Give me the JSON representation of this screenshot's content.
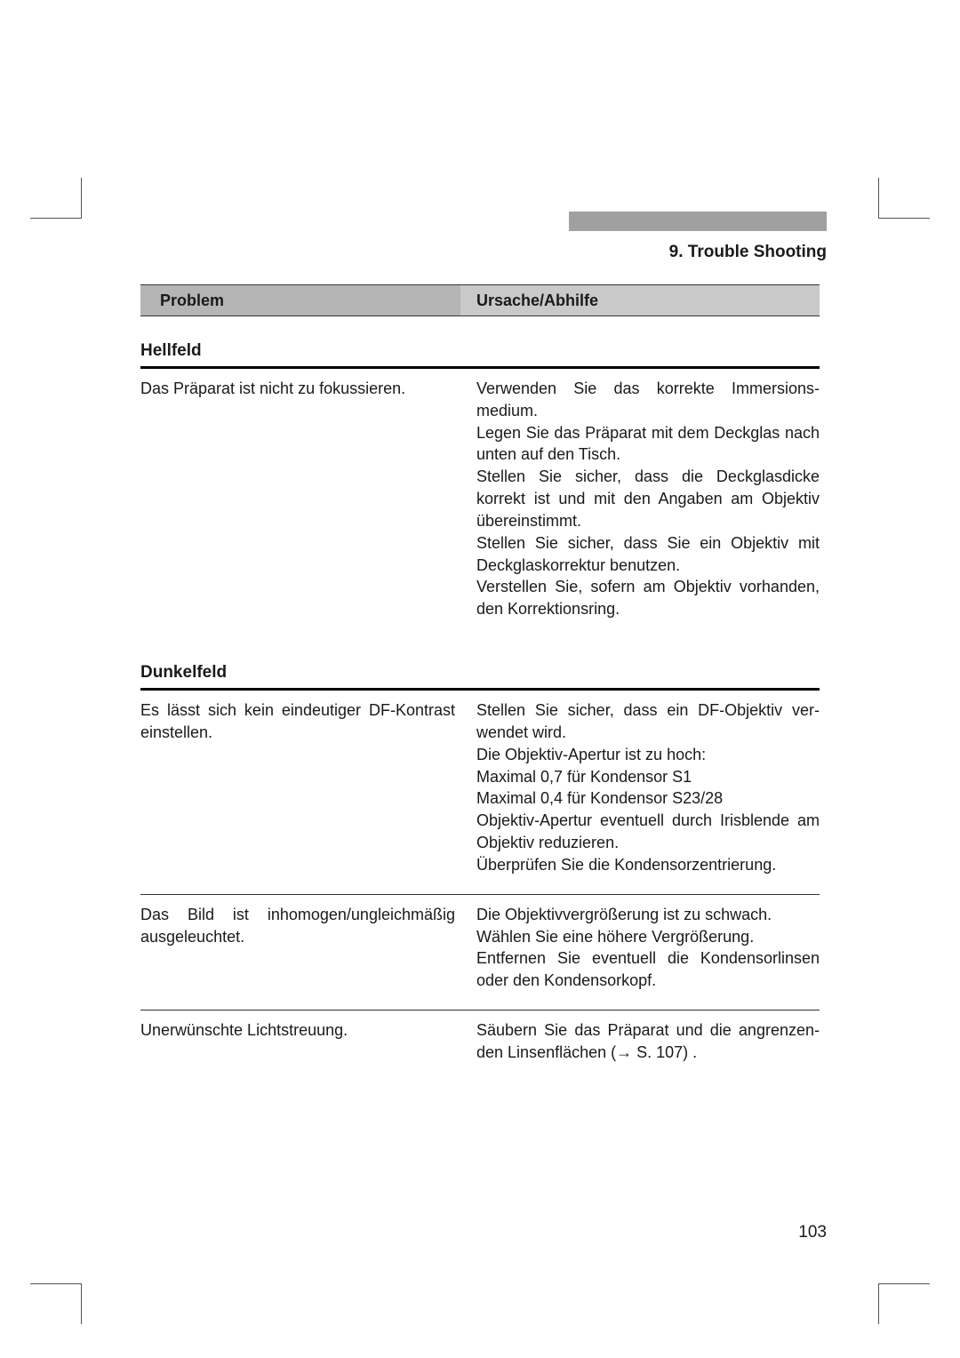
{
  "chapter_title": "9. Trouble Shooting",
  "table_header": {
    "problem": "Problem",
    "cause": "Ursache/Abhilfe"
  },
  "sections": {
    "hellfeld": {
      "title": "Hellfeld",
      "row1": {
        "problem": "Das Präparat ist nicht zu fokussieren.",
        "cause": "Verwenden Sie das korrekte Immersions­medium.\nLegen Sie das Präparat mit dem Deckglas nach unten auf den Tisch.\nStellen Sie sicher, dass die Deckglasdicke korrekt ist und mit den Angaben am Objektiv übereinstimmt.\nStellen Sie sicher, dass Sie ein Objektiv mit Deckglaskorrektur benutzen.\nVerstellen Sie, sofern am Objektiv vorhanden, den Korrektionsring."
      }
    },
    "dunkelfeld": {
      "title": "Dunkelfeld",
      "row1": {
        "problem": "Es lässt sich kein eindeutiger DF-Kontrast ein­stellen.",
        "cause": "Stellen Sie sicher, dass ein DF-Objektiv ver­wendet wird.\nDie Objektiv-Apertur ist zu hoch:\nMaximal 0,7 für Kondensor S1\nMaximal 0,4 für Kondensor S23/28\nObjektiv-Apertur eventuell durch Irisblende am Objektiv reduzieren.\nÜberprüfen Sie die Kondensorzentrierung."
      },
      "row2": {
        "problem": "Das Bild ist inhomogen/ungleichmäßig ausge­leuchtet.",
        "cause": "Die Objektivvergrößerung ist zu schwach.\nWählen Sie eine höhere Vergrößerung.\nEntfernen Sie eventuell die Kondensorlinsen oder den Kondensorkopf."
      },
      "row3": {
        "problem": "Unerwünschte Lichtstreuung.",
        "cause": "Säubern Sie das Präparat und die angrenzen­den Linsenflächen  (→ S. 107) ."
      }
    }
  },
  "page_number": "103"
}
